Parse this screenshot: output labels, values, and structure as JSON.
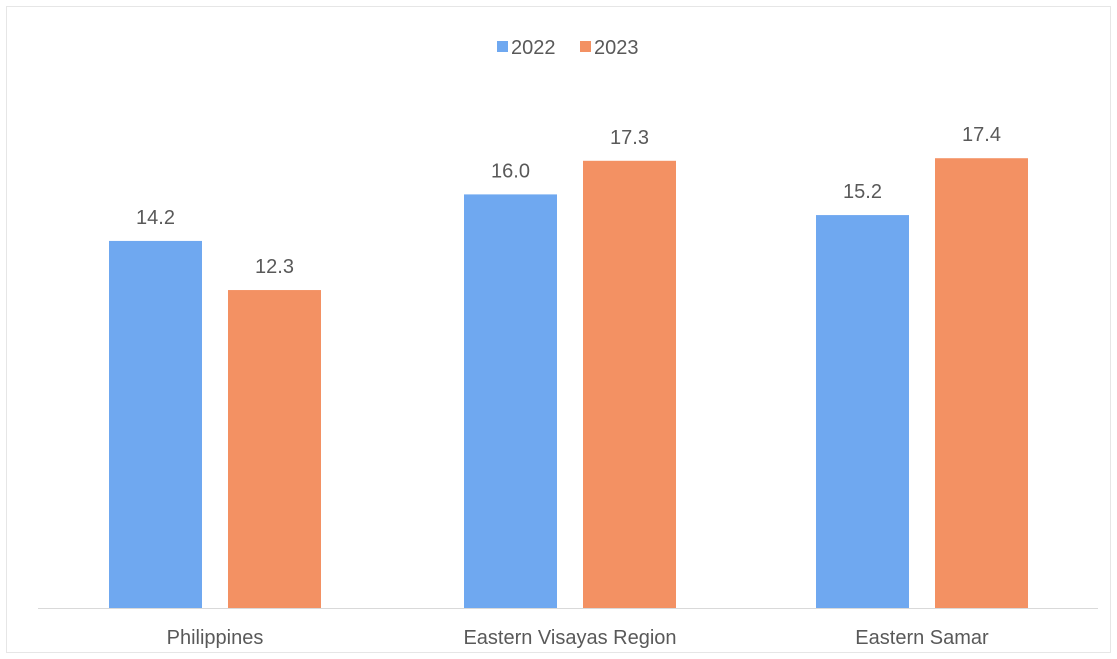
{
  "chart_data": {
    "type": "bar",
    "title": "",
    "xlabel": "",
    "ylabel": "",
    "categories": [
      "Philippines",
      "Eastern Visayas Region",
      "Eastern Samar"
    ],
    "series": [
      {
        "name": "2022",
        "color": "#6fa8f0",
        "values": [
          14.2,
          16.0,
          15.2
        ],
        "labels": [
          "14.2",
          "16.0",
          "15.2"
        ]
      },
      {
        "name": "2023",
        "color": "#f39163",
        "values": [
          12.3,
          17.3,
          17.4
        ],
        "labels": [
          "12.3",
          "17.3",
          "17.4"
        ]
      }
    ],
    "ylim": [
      0,
      20
    ],
    "grid": false,
    "legend_position": "top-center",
    "axis_color": "#d9d9d9",
    "text_color": "#595959"
  }
}
